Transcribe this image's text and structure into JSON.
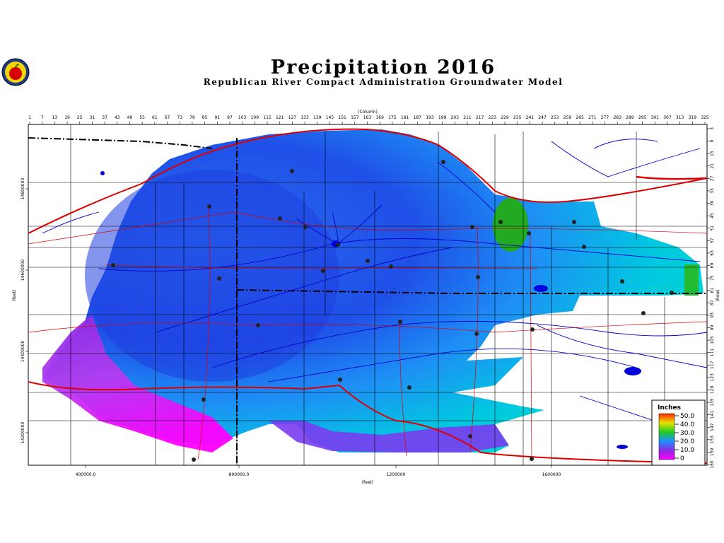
{
  "title": "Precipitation 2016",
  "subtitle": "Republican River Compact Administration Groundwater Model",
  "top_axis_label": "(Column)",
  "right_axis_label": "(Row)",
  "left_axis_label": "(feet)",
  "bottom_axis_label": "(feet)",
  "columns": [
    "1",
    "7",
    "13",
    "19",
    "25",
    "31",
    "37",
    "43",
    "49",
    "55",
    "61",
    "67",
    "73",
    "79",
    "85",
    "91",
    "97",
    "103",
    "109",
    "115",
    "121",
    "127",
    "133",
    "139",
    "145",
    "151",
    "157",
    "163",
    "169",
    "175",
    "181",
    "187",
    "193",
    "199",
    "205",
    "211",
    "217",
    "223",
    "229",
    "235",
    "241",
    "247",
    "253",
    "259",
    "265",
    "271",
    "277",
    "283",
    "289",
    "295",
    "301",
    "307",
    "313",
    "319",
    "325"
  ],
  "rows": [
    "3",
    "9",
    "15",
    "21",
    "27",
    "33",
    "39",
    "45",
    "51",
    "57",
    "63",
    "69",
    "75",
    "81",
    "87",
    "93",
    "99",
    "105",
    "111",
    "117",
    "123",
    "129",
    "135",
    "141",
    "147",
    "153",
    "159",
    "165"
  ],
  "y_ticks": [
    "14800000",
    "14600000",
    "14400000",
    "14200000"
  ],
  "x_ticks": [
    "400000.0",
    "800000.0",
    "1200000",
    "1600000"
  ],
  "legend": {
    "title": "Inches",
    "items": [
      {
        "label": "50.0",
        "color": "#ff2a00"
      },
      {
        "label": "40.0",
        "color": "#e8e000"
      },
      {
        "label": "30.0",
        "color": "#22cc22"
      },
      {
        "label": "20.0",
        "color": "#1e90ff"
      },
      {
        "label": "10.0",
        "color": "#8a2be2"
      },
      {
        "label": "0",
        "color": "#ff00ff"
      }
    ]
  },
  "colors": {
    "river": "#0000cc",
    "road": "#dd0000",
    "state_border": "#000000",
    "county_line": "#000000"
  }
}
